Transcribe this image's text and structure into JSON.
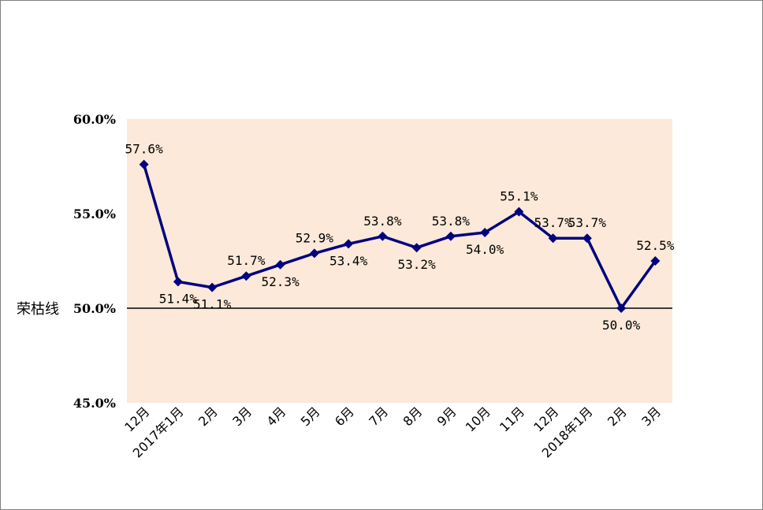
{
  "chart_data": {
    "type": "line",
    "categories": [
      "12月",
      "2017年1月",
      "2月",
      "3月",
      "4月",
      "5月",
      "6月",
      "7月",
      "8月",
      "9月",
      "10月",
      "11月",
      "12月",
      "2018年1月",
      "2月",
      "3月"
    ],
    "values": [
      57.6,
      51.4,
      51.1,
      51.7,
      52.3,
      52.9,
      53.4,
      53.8,
      53.2,
      53.8,
      54.0,
      55.1,
      53.7,
      53.7,
      50.0,
      52.5
    ],
    "data_labels": [
      "57.6%",
      "51.4%",
      "51.1%",
      "51.7%",
      "52.3%",
      "52.9%",
      "53.4%",
      "53.8%",
      "53.2%",
      "53.8%",
      "54.0%",
      "55.1%",
      "53.7%",
      "53.7%",
      "50.0%",
      "52.5%"
    ],
    "yticks": [
      "45.0%",
      "50.0%",
      "55.0%",
      "60.0%"
    ],
    "ylim": [
      45,
      60
    ],
    "reference_line": {
      "label": "荣枯线",
      "value": 50
    },
    "colors": {
      "line": "#00007f",
      "plot_background": "#fde9d9",
      "reference_line": "#000000"
    },
    "grid": false,
    "legend": "none",
    "title": "",
    "xlabel": "",
    "ylabel": ""
  }
}
